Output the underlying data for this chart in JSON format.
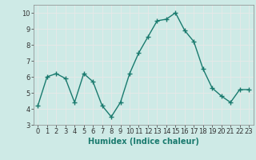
{
  "x": [
    0,
    1,
    2,
    3,
    4,
    5,
    6,
    7,
    8,
    9,
    10,
    11,
    12,
    13,
    14,
    15,
    16,
    17,
    18,
    19,
    20,
    21,
    22,
    23
  ],
  "y": [
    4.2,
    6.0,
    6.2,
    5.9,
    4.4,
    6.2,
    5.7,
    4.2,
    3.5,
    4.4,
    6.2,
    7.5,
    8.5,
    9.5,
    9.6,
    10.0,
    8.9,
    8.2,
    6.5,
    5.3,
    4.8,
    4.4,
    5.2,
    5.2
  ],
  "line_color": "#1a7a6e",
  "marker": "+",
  "marker_size": 4.0,
  "line_width": 1.0,
  "xlabel": "Humidex (Indice chaleur)",
  "xlabel_fontsize": 7,
  "xlabel_bold": true,
  "ylim": [
    3,
    10.5
  ],
  "yticks": [
    3,
    4,
    5,
    6,
    7,
    8,
    9,
    10
  ],
  "xticks": [
    0,
    1,
    2,
    3,
    4,
    5,
    6,
    7,
    8,
    9,
    10,
    11,
    12,
    13,
    14,
    15,
    16,
    17,
    18,
    19,
    20,
    21,
    22,
    23
  ],
  "xtick_labels": [
    "0",
    "1",
    "2",
    "3",
    "4",
    "5",
    "6",
    "7",
    "8",
    "9",
    "10",
    "11",
    "12",
    "13",
    "14",
    "15",
    "16",
    "17",
    "18",
    "19",
    "20",
    "21",
    "22",
    "23"
  ],
  "background_color": "#ceeae6",
  "grid_color": "#e8e8e8",
  "tick_fontsize": 6.0
}
